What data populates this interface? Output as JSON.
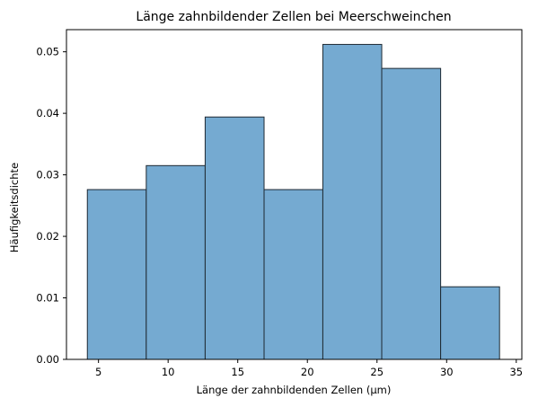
{
  "chart_data": {
    "type": "histogram",
    "title": "Länge zahnbildender Zellen bei Meerschweinchen",
    "xlabel": "Länge der zahnbildenden Zellen (µm)",
    "ylabel": "Häufigkeitsdichte",
    "xlim": [
      2.7,
      35.4
    ],
    "ylim": [
      0,
      0.0536
    ],
    "xticks": [
      5,
      10,
      15,
      20,
      25,
      30,
      35
    ],
    "xtick_labels": [
      "5",
      "10",
      "15",
      "20",
      "25",
      "30",
      "35"
    ],
    "yticks": [
      0.0,
      0.01,
      0.02,
      0.03,
      0.04,
      0.05
    ],
    "ytick_labels": [
      "0.00",
      "0.01",
      "0.02",
      "0.03",
      "0.04",
      "0.05"
    ],
    "bin_edges": [
      4.2,
      8.43,
      12.66,
      16.89,
      21.11,
      25.34,
      29.57,
      33.8
    ],
    "values": [
      0.0276,
      0.0315,
      0.0394,
      0.0276,
      0.0512,
      0.0473,
      0.0118
    ],
    "bar_color": "#75aad1",
    "bar_edge_color": "#1f2a33",
    "grid": false,
    "legend": "none"
  }
}
